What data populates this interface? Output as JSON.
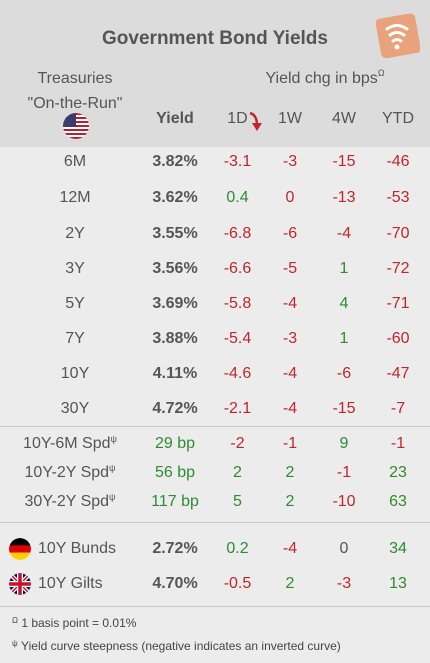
{
  "title": "Government Bond Yields",
  "header": {
    "treasuries_line1": "Treasuries",
    "treasuries_line2": "\"On-the-Run\"",
    "yield_label": "Yield",
    "yield_chg_label": "Yield chg in bps",
    "yield_chg_mark": "Ω",
    "columns": [
      "1D",
      "1W",
      "4W",
      "YTD"
    ]
  },
  "treasuries": [
    {
      "tenor": "6M",
      "yield": "3.82%",
      "d1": "-3.1",
      "w1": "-3",
      "w4": "-15",
      "ytd": "-46"
    },
    {
      "tenor": "12M",
      "yield": "3.62%",
      "d1": "0.4",
      "w1": "0",
      "w4": "-13",
      "ytd": "-53"
    },
    {
      "tenor": "2Y",
      "yield": "3.55%",
      "d1": "-6.8",
      "w1": "-6",
      "w4": "-4",
      "ytd": "-70"
    },
    {
      "tenor": "3Y",
      "yield": "3.56%",
      "d1": "-6.6",
      "w1": "-5",
      "w4": "1",
      "ytd": "-72"
    },
    {
      "tenor": "5Y",
      "yield": "3.69%",
      "d1": "-5.8",
      "w1": "-4",
      "w4": "4",
      "ytd": "-71"
    },
    {
      "tenor": "7Y",
      "yield": "3.88%",
      "d1": "-5.4",
      "w1": "-3",
      "w4": "1",
      "ytd": "-60"
    },
    {
      "tenor": "10Y",
      "yield": "4.11%",
      "d1": "-4.6",
      "w1": "-4",
      "w4": "-6",
      "ytd": "-47"
    },
    {
      "tenor": "30Y",
      "yield": "4.72%",
      "d1": "-2.1",
      "w1": "-4",
      "w4": "-15",
      "ytd": "-7"
    }
  ],
  "spreads": [
    {
      "label": "10Y-6M Spd",
      "mark": "ψ",
      "value": "29 bp",
      "d1": "-2",
      "w1": "-1",
      "w4": "9",
      "ytd": "-1"
    },
    {
      "label": "10Y-2Y Spd",
      "mark": "ψ",
      "value": "56 bp",
      "d1": "2",
      "w1": "2",
      "w4": "-1",
      "ytd": "23"
    },
    {
      "label": "30Y-2Y Spd",
      "mark": "ψ",
      "value": "117 bp",
      "d1": "5",
      "w1": "2",
      "w4": "-10",
      "ytd": "63"
    }
  ],
  "international": [
    {
      "label": "10Y Bunds",
      "flag": "germany-flag",
      "yield": "2.72%",
      "d1": "0.2",
      "w1": "-4",
      "w4": "0",
      "ytd": "34"
    },
    {
      "label": "10Y Gilts",
      "flag": "uk-flag",
      "yield": "4.70%",
      "d1": "-0.5",
      "w1": "2",
      "w4": "-3",
      "ytd": "13"
    }
  ],
  "footnotes": {
    "omega_mark": "Ω",
    "omega_text": "1 basis point = 0.01%",
    "psi_mark": "ψ",
    "psi_text": "Yield curve steepness (negative indicates an inverted curve)"
  },
  "colors": {
    "negative": "#c0262a",
    "positive": "#2e8b2e",
    "neutral": "#555555",
    "header_bg": "#dcdcdc",
    "body_bg": "#ececec",
    "logo": "#e8a27c"
  },
  "icons": {
    "logo": "wifi-signal-logo-icon",
    "us_flag": "us-flag-icon",
    "down_arrow": "red-down-arrow-icon"
  }
}
